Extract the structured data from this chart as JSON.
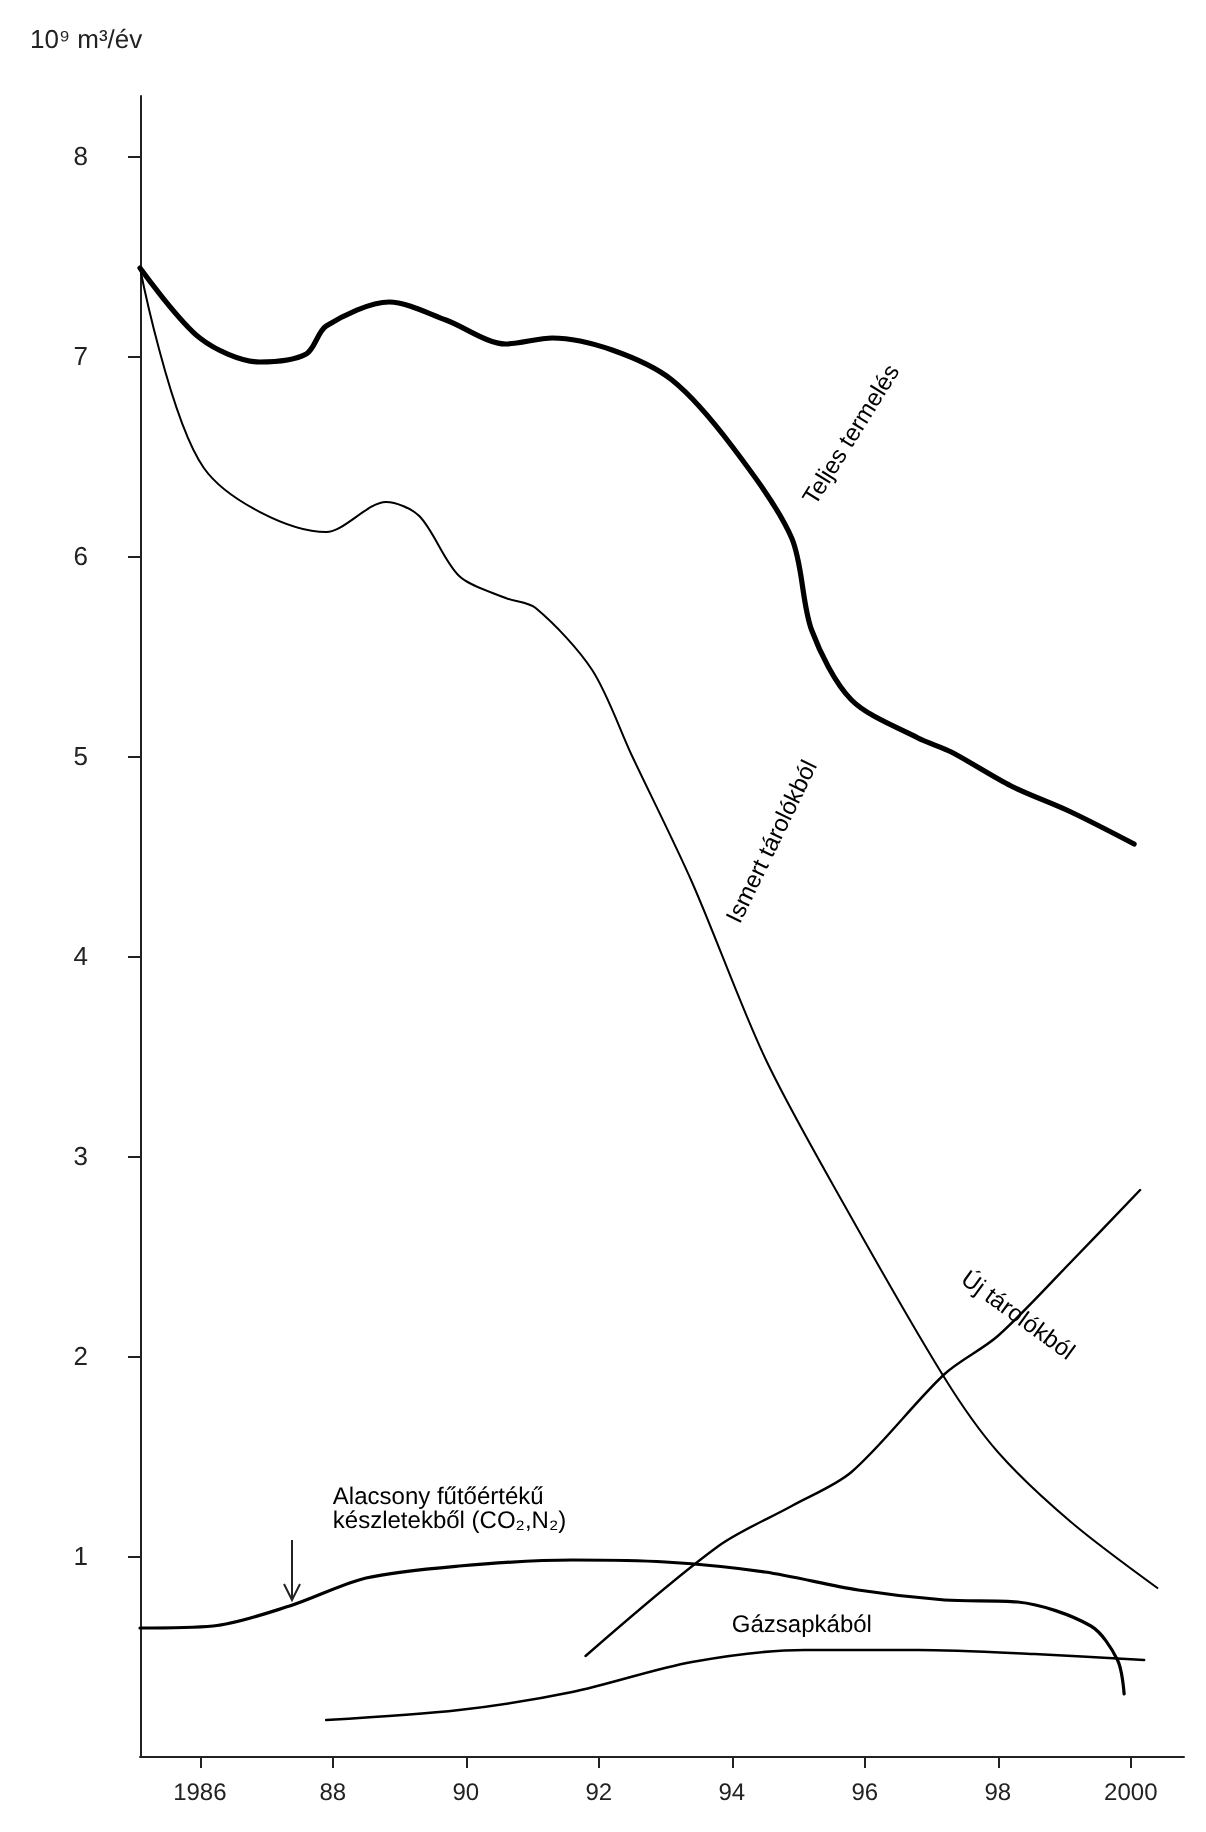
{
  "chart_data": {
    "type": "line",
    "ylabel": "10⁹ m³/év",
    "marker": "none",
    "line_style": "solid",
    "grid": false,
    "legend": false,
    "xlim": [
      1985.1,
      2000.8
    ],
    "xticks": [
      {
        "value": 1986,
        "label": "1986"
      },
      {
        "value": 1988,
        "label": "88"
      },
      {
        "value": 1990,
        "label": "90"
      },
      {
        "value": 1992,
        "label": "92"
      },
      {
        "value": 1994,
        "label": "94"
      },
      {
        "value": 1996,
        "label": "96"
      },
      {
        "value": 1998,
        "label": "98"
      },
      {
        "value": 2000,
        "label": "2000"
      }
    ],
    "ylim": [
      0,
      8.3
    ],
    "yticks": [
      1,
      2,
      3,
      4,
      5,
      6,
      7,
      8
    ],
    "series": [
      {
        "name": "Teljes termelés",
        "color": "#000000",
        "x": [
          1985.1,
          1986.0,
          1986.9,
          1987.6,
          1987.9,
          1988.85,
          1989.7,
          1990.6,
          1991.3,
          1992.2,
          1993.1,
          1994.0,
          1994.9,
          1995.2,
          1995.8,
          1996.8,
          1997.3,
          1998.2,
          1999.1,
          2000.05
        ],
        "values": [
          7.44,
          7.09,
          6.97,
          7.01,
          7.15,
          7.27,
          7.18,
          7.06,
          7.09,
          7.03,
          6.88,
          6.55,
          6.09,
          5.63,
          5.28,
          5.09,
          5.02,
          4.85,
          4.72,
          4.56
        ]
      },
      {
        "name": "Ismert tárolókból",
        "color": "#000000",
        "x": [
          1985.1,
          1986.06,
          1987.9,
          1988.8,
          1989.3,
          1989.9,
          1990.6,
          1991.05,
          1991.9,
          1992.5,
          1993.4,
          1994.5,
          1995.7,
          1997.2,
          1998.0,
          1999.1,
          2000.4
        ],
        "values": [
          7.44,
          6.44,
          6.12,
          6.27,
          6.2,
          5.9,
          5.79,
          5.74,
          5.43,
          5.0,
          4.37,
          3.49,
          2.75,
          1.89,
          1.52,
          1.17,
          0.84
        ]
      },
      {
        "name": "Új tárolókból",
        "color": "#000000",
        "x": [
          1991.8,
          1993.8,
          1994.9,
          1995.8,
          1997.2,
          1998.0,
          1999.1,
          2000.14
        ],
        "values": [
          0.5,
          1.05,
          1.25,
          1.42,
          1.91,
          2.1,
          2.47,
          2.83
        ]
      },
      {
        "name": "Alacsony fűtőértékű készletekből (CO₂,N₂)",
        "color": "#000000",
        "x": [
          1985.1,
          1986.2,
          1987.35,
          1988.5,
          1989.9,
          1991.6,
          1993.0,
          1994.5,
          1995.9,
          1997.2,
          1998.3,
          1999.4,
          1999.8,
          1999.9
        ],
        "values": [
          0.64,
          0.65,
          0.75,
          0.89,
          0.95,
          0.98,
          0.97,
          0.92,
          0.83,
          0.78,
          0.77,
          0.65,
          0.48,
          0.31
        ]
      },
      {
        "name": "Gázsapkából",
        "color": "#000000",
        "x": [
          1987.9,
          1989.9,
          1991.6,
          1993.4,
          1995.1,
          1996.8,
          1998.55,
          2000.2
        ],
        "values": [
          0.18,
          0.23,
          0.32,
          0.47,
          0.53,
          0.53,
          0.51,
          0.48
        ]
      }
    ]
  }
}
